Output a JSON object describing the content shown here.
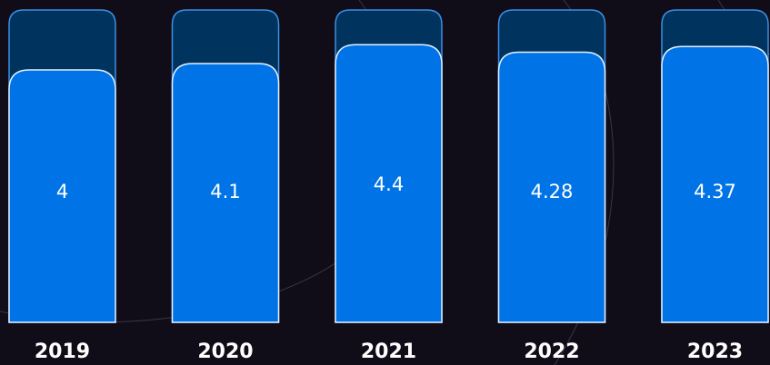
{
  "chart_data": {
    "type": "bar",
    "categories": [
      "2019",
      "2020",
      "2021",
      "2022",
      "2023"
    ],
    "values": [
      4,
      4.1,
      4.4,
      4.28,
      4.37
    ],
    "value_labels": [
      "4",
      "4.1",
      "4.4",
      "4.28",
      "4.37"
    ],
    "ylim": [
      0,
      5
    ],
    "grid": false,
    "legend": "none",
    "colors": {
      "background": "#110d18",
      "bar_fill": "#0073e6",
      "bar_stroke": "#e6f0ff",
      "track_fill": "#00345f",
      "track_stroke": "#3a8fe6",
      "text": "#ffffff"
    }
  }
}
